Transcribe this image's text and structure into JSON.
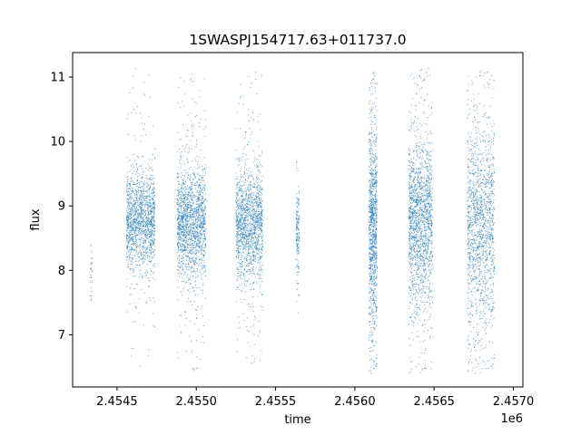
{
  "chart_data": {
    "type": "scatter",
    "title": "1SWASPJ154717.63+011737.0",
    "xlabel": "time",
    "ylabel": "flux",
    "x_offset_label": "1e6",
    "x_scale_factor": 1000000,
    "xlim": [
      2454220,
      2457060
    ],
    "ylim": [
      6.19,
      11.38
    ],
    "grid": false,
    "legend": "none",
    "marker_color": "#1f77b4",
    "x_ticks": [
      {
        "value": 2454500,
        "label": "2.4545"
      },
      {
        "value": 2455000,
        "label": "2.4550"
      },
      {
        "value": 2455500,
        "label": "2.4555"
      },
      {
        "value": 2456000,
        "label": "2.4560"
      },
      {
        "value": 2456500,
        "label": "2.4565"
      },
      {
        "value": 2457000,
        "label": "2.4570"
      }
    ],
    "y_ticks": [
      {
        "value": 7,
        "label": "7"
      },
      {
        "value": 8,
        "label": "8"
      },
      {
        "value": 9,
        "label": "9"
      },
      {
        "value": 10,
        "label": "10"
      },
      {
        "value": 11,
        "label": "11"
      }
    ],
    "series": [
      {
        "seasons": [
          {
            "x_start": 2454330,
            "x_end": 2454345,
            "y_center": 7.95,
            "y_spread": 0.25,
            "y_min": 7.4,
            "y_max": 8.4,
            "count": 30
          },
          {
            "x_start": 2454560,
            "x_end": 2454740,
            "y_center": 8.75,
            "y_spread": 0.35,
            "y_min": 6.5,
            "y_max": 11.15,
            "count": 1500
          },
          {
            "x_start": 2454880,
            "x_end": 2455060,
            "y_center": 8.75,
            "y_spread": 0.4,
            "y_min": 6.4,
            "y_max": 11.1,
            "count": 1700
          },
          {
            "x_start": 2455250,
            "x_end": 2455420,
            "y_center": 8.72,
            "y_spread": 0.4,
            "y_min": 6.5,
            "y_max": 11.15,
            "count": 1500
          },
          {
            "x_start": 2455630,
            "x_end": 2455650,
            "y_center": 8.6,
            "y_spread": 0.3,
            "y_min": 6.9,
            "y_max": 9.75,
            "count": 180
          },
          {
            "x_start": 2456090,
            "x_end": 2456140,
            "y_center": 8.7,
            "y_spread": 0.75,
            "y_min": 6.4,
            "y_max": 11.1,
            "count": 1100
          },
          {
            "x_start": 2456340,
            "x_end": 2456490,
            "y_center": 8.75,
            "y_spread": 0.6,
            "y_min": 6.4,
            "y_max": 11.15,
            "count": 1700
          },
          {
            "x_start": 2456710,
            "x_end": 2456880,
            "y_center": 8.7,
            "y_spread": 0.75,
            "y_min": 6.4,
            "y_max": 11.15,
            "count": 1500
          }
        ]
      }
    ]
  }
}
